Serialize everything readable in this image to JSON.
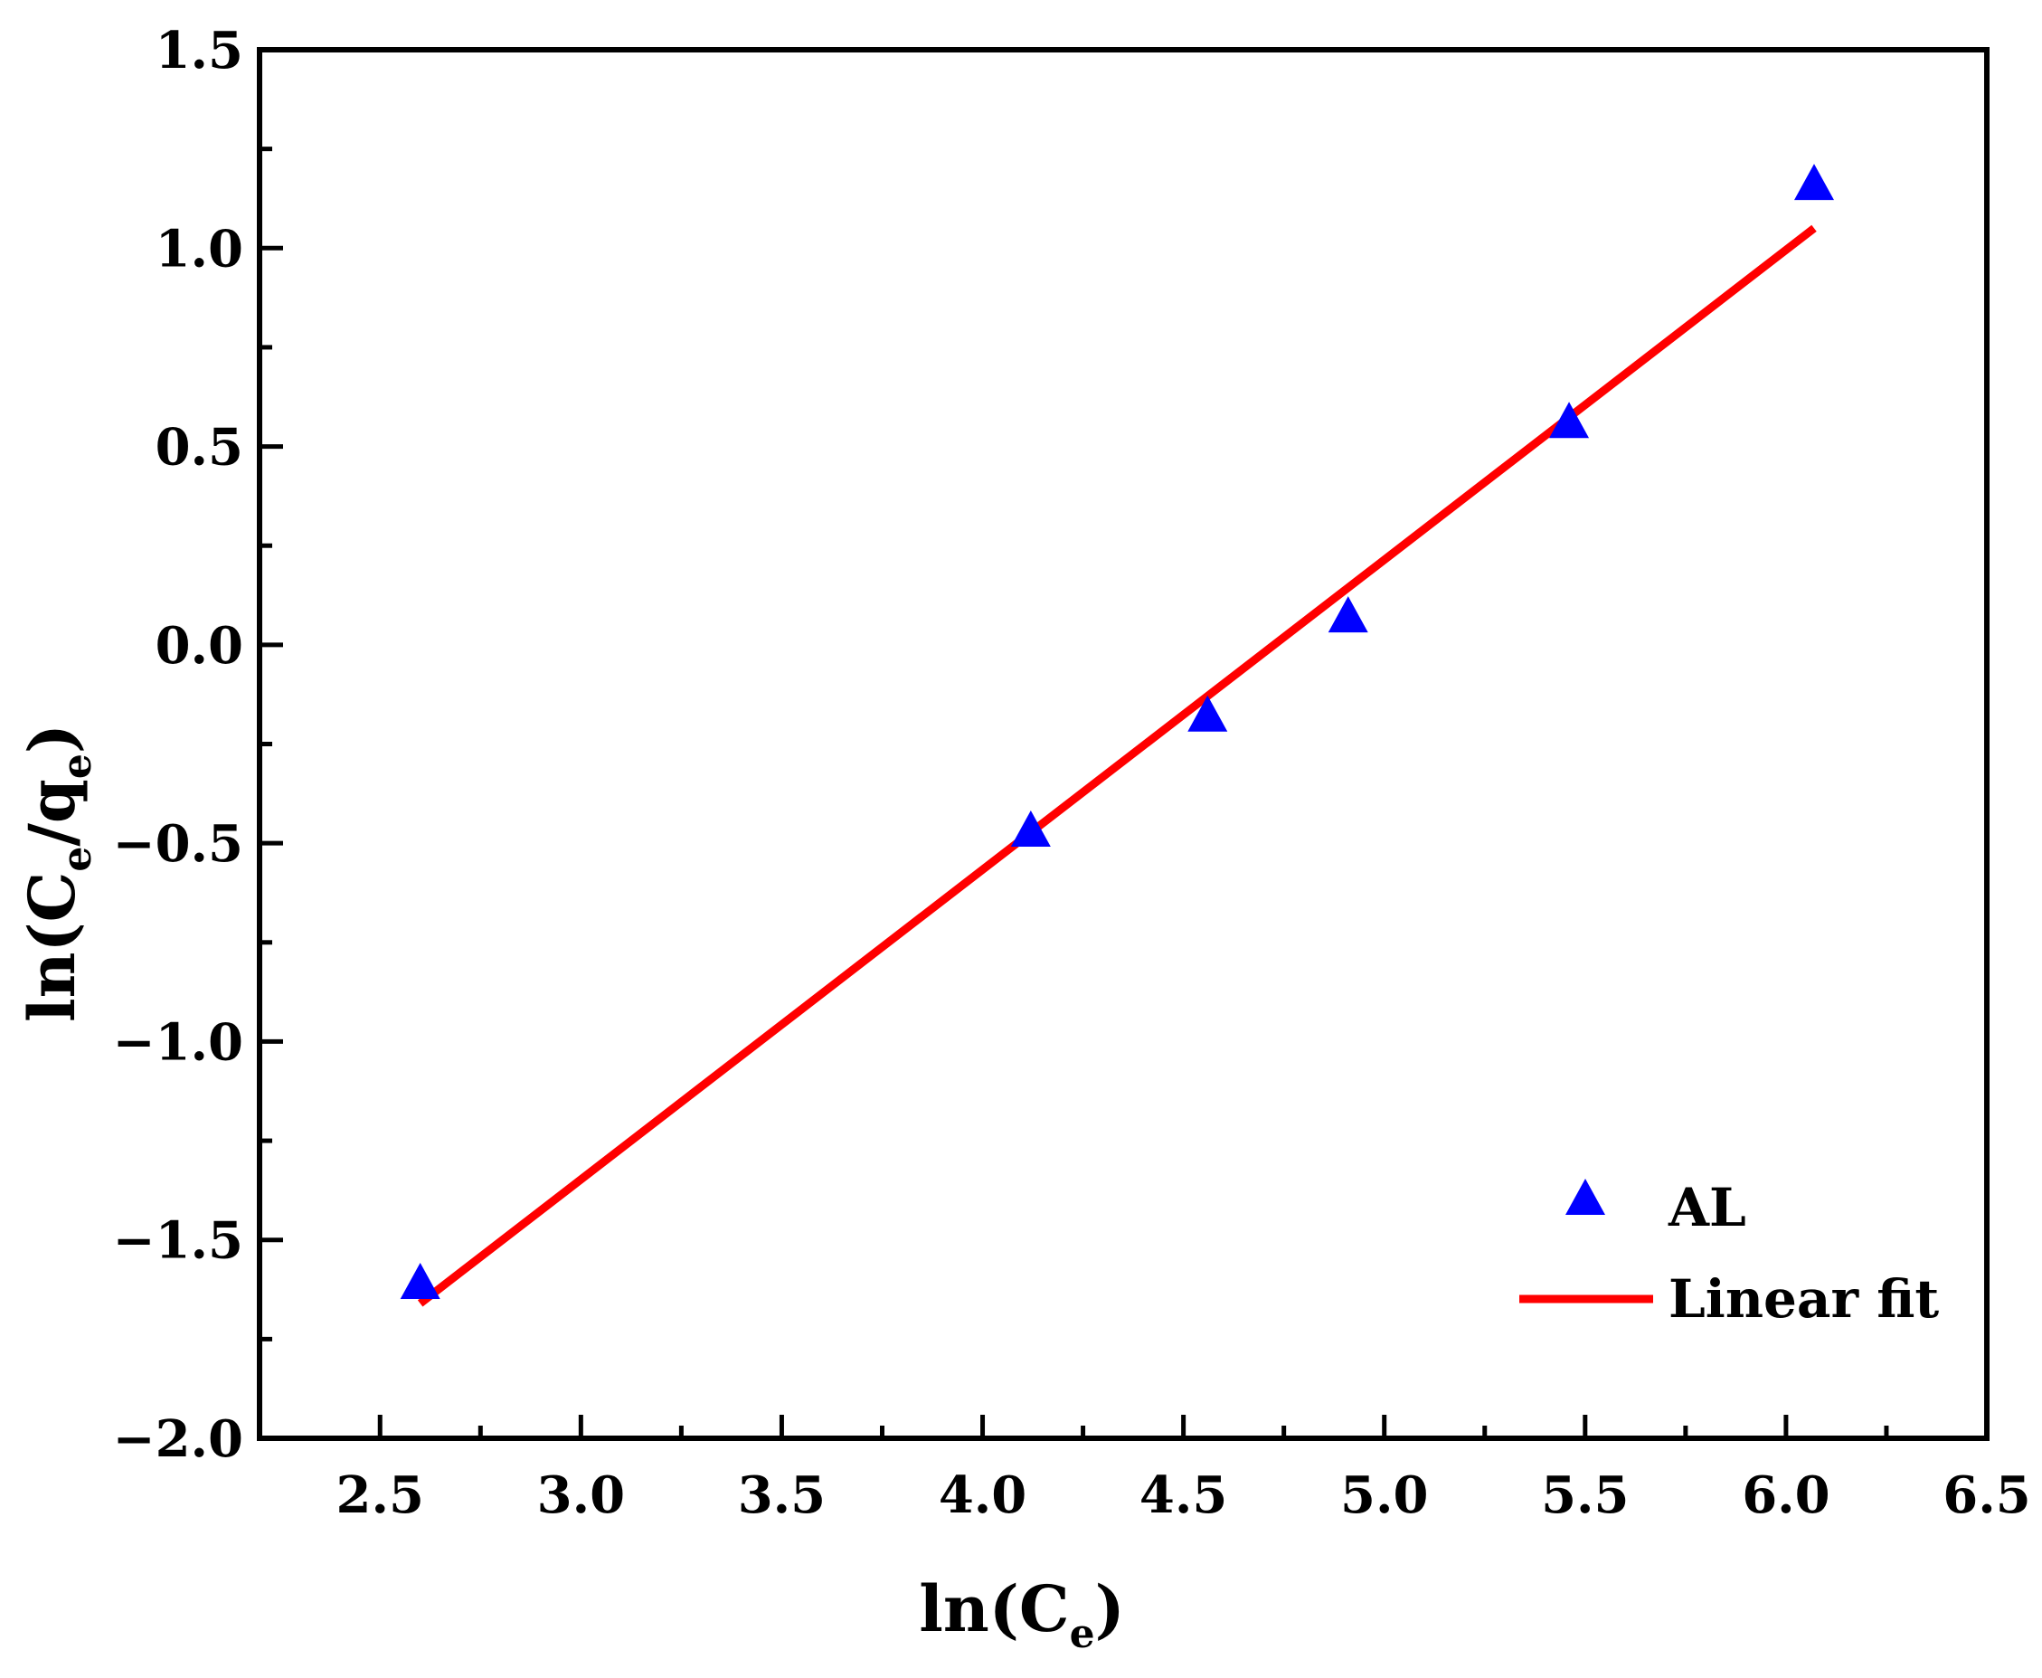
{
  "chart_data": {
    "type": "scatter",
    "title": "",
    "xlabel": {
      "prefix": "ln(C",
      "sub": "e",
      "suffix": ")"
    },
    "ylabel": {
      "prefix": "ln(C",
      "sub1": "e",
      "mid": "/q",
      "sub2": "e",
      "suffix": ")"
    },
    "xlim": [
      2.2,
      6.5
    ],
    "ylim": [
      -2.0,
      1.5
    ],
    "xticks": [
      "2.5",
      "3.0",
      "3.5",
      "4.0",
      "4.5",
      "5.0",
      "5.5",
      "6.0",
      "6.5"
    ],
    "yticks": [
      "1.5",
      "1.0",
      "0.5",
      "0.0",
      "−0.5",
      "−1.0",
      "−1.5",
      "−2.0"
    ],
    "series": [
      {
        "name": "AL",
        "kind": "scatter",
        "marker": "triangle-up",
        "color": "#0000ff",
        "x": [
          2.6,
          4.12,
          4.56,
          4.91,
          5.46,
          6.07
        ],
        "y": [
          -1.61,
          -0.47,
          -0.18,
          0.07,
          0.56,
          1.16
        ]
      },
      {
        "name": "Linear fit",
        "kind": "line",
        "color": "#ff0000",
        "x": [
          2.6,
          6.07
        ],
        "y": [
          -1.66,
          1.05
        ]
      }
    ],
    "legend": {
      "position": "bottom-right",
      "entries": [
        "AL",
        "Linear fit"
      ]
    }
  }
}
